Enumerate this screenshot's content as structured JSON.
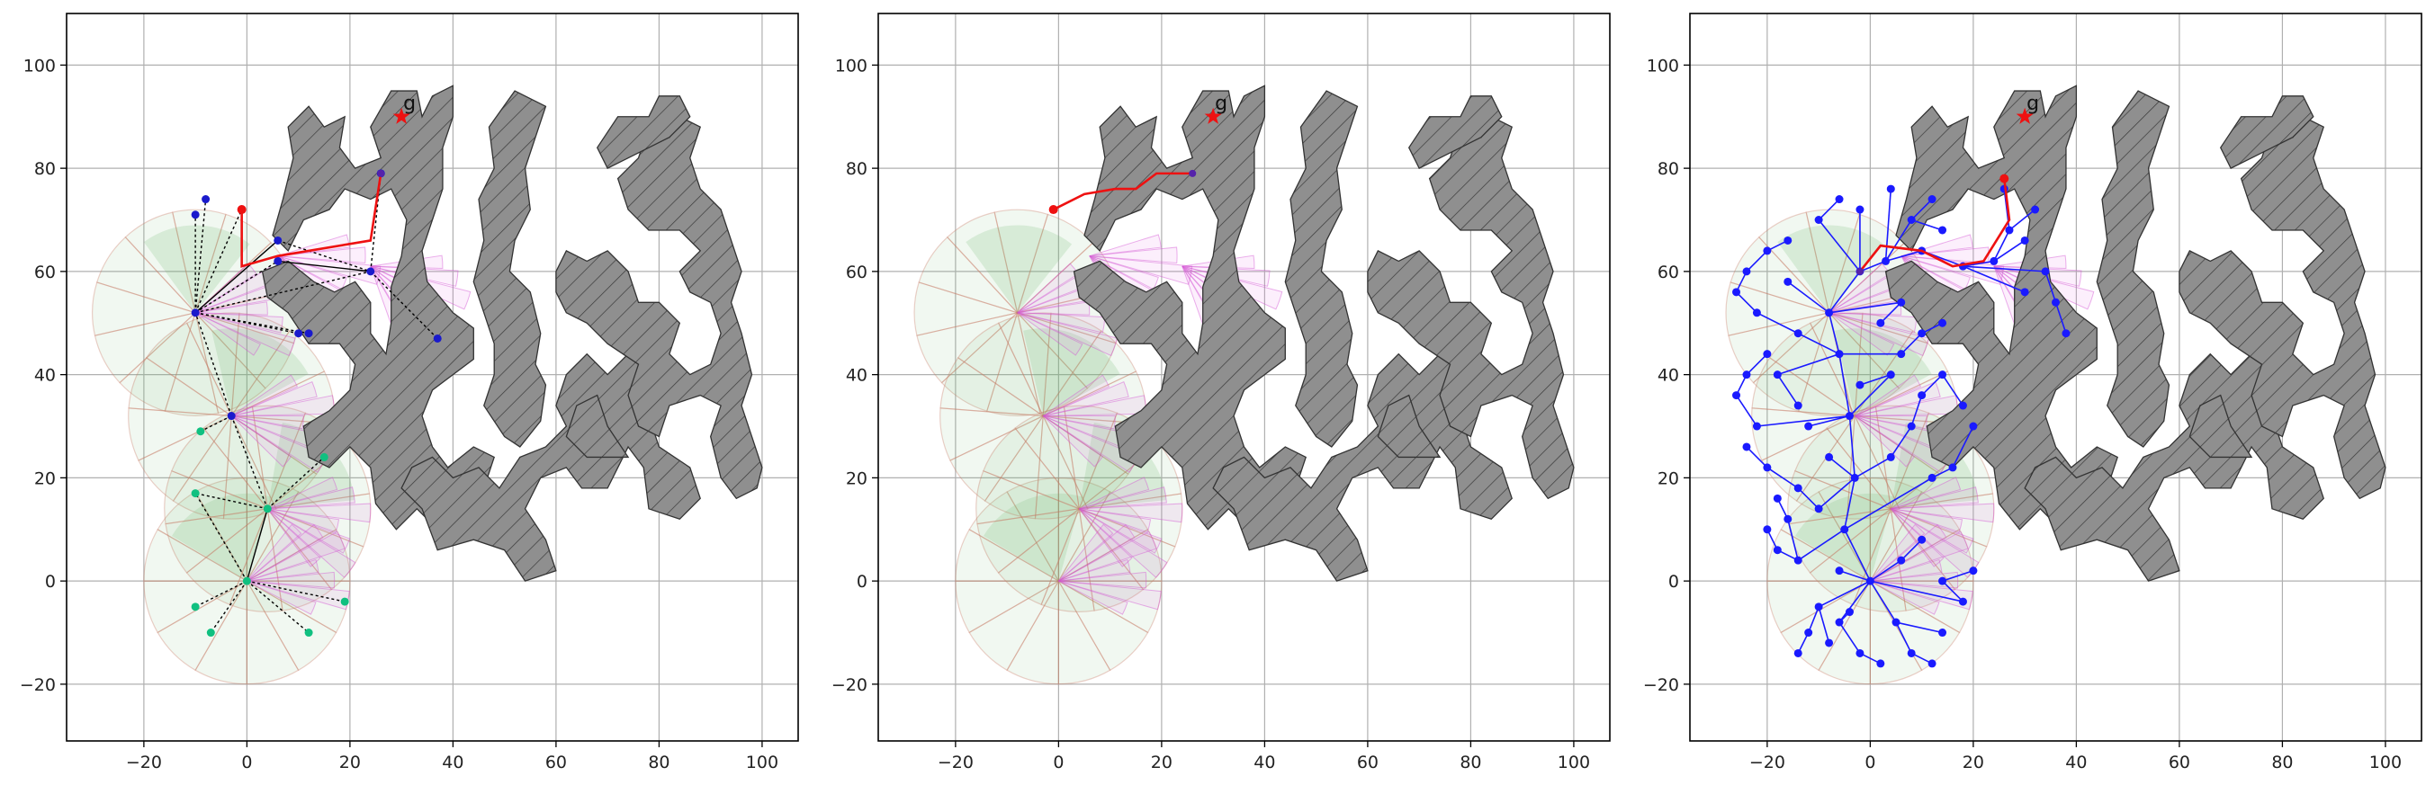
{
  "chart_data": [
    {
      "type": "scatter",
      "panel": "left",
      "title": "",
      "xlabel": "",
      "ylabel": "",
      "xlim": [
        -35,
        107
      ],
      "ylim": [
        -31,
        110
      ],
      "xticks": [
        -20,
        0,
        20,
        40,
        60,
        80,
        100
      ],
      "yticks": [
        -20,
        0,
        20,
        40,
        60,
        80,
        100
      ],
      "grid": true,
      "goal": {
        "label": "g",
        "x": 30,
        "y": 90
      },
      "sensor_origins": [
        [
          0,
          0
        ],
        [
          -10,
          52
        ],
        [
          -3,
          32
        ],
        [
          4,
          14
        ]
      ],
      "tree_nodes": [
        [
          0,
          0
        ],
        [
          -10,
          52
        ],
        [
          -3,
          32
        ],
        [
          4,
          14
        ],
        [
          6,
          66
        ],
        [
          6,
          62
        ],
        [
          24,
          60
        ],
        [
          26,
          79
        ],
        [
          -8,
          74
        ],
        [
          -1,
          72
        ],
        [
          -10,
          71
        ],
        [
          10,
          48
        ],
        [
          12,
          48
        ],
        [
          37,
          47
        ],
        [
          -9,
          29
        ],
        [
          -10,
          17
        ],
        [
          15,
          24
        ],
        [
          -10,
          -5
        ],
        [
          -7,
          -10
        ],
        [
          12,
          -10
        ],
        [
          19,
          -4
        ]
      ],
      "tree_edges": [
        [
          0,
          3
        ],
        [
          3,
          2
        ],
        [
          2,
          1
        ],
        [
          1,
          4
        ],
        [
          1,
          5
        ],
        [
          4,
          6
        ],
        [
          5,
          6
        ],
        [
          6,
          7
        ],
        [
          1,
          8
        ],
        [
          1,
          9
        ],
        [
          1,
          10
        ],
        [
          1,
          11
        ],
        [
          1,
          12
        ],
        [
          6,
          13
        ],
        [
          2,
          14
        ],
        [
          3,
          15
        ],
        [
          3,
          16
        ],
        [
          0,
          17
        ],
        [
          0,
          18
        ],
        [
          0,
          19
        ],
        [
          0,
          20
        ],
        [
          0,
          15
        ],
        [
          1,
          6
        ]
      ],
      "path": [
        [
          -1,
          72
        ],
        [
          -1,
          61
        ],
        [
          6,
          63
        ],
        [
          24,
          66
        ],
        [
          26,
          79
        ]
      ]
    },
    {
      "type": "scatter",
      "panel": "middle",
      "title": "",
      "xlabel": "",
      "ylabel": "",
      "xlim": [
        -35,
        107
      ],
      "ylim": [
        -31,
        110
      ],
      "xticks": [
        -20,
        0,
        20,
        40,
        60,
        80,
        100
      ],
      "yticks": [
        -20,
        0,
        20,
        40,
        60,
        80,
        100
      ],
      "grid": true,
      "goal": {
        "label": "g",
        "x": 30,
        "y": 90
      },
      "sensor_origins": [
        [
          0,
          0
        ],
        [
          -8,
          52
        ],
        [
          -3,
          32
        ],
        [
          4,
          14
        ]
      ],
      "tree_nodes": [],
      "tree_edges": [],
      "path": [
        [
          -1,
          72
        ],
        [
          5,
          75
        ],
        [
          11,
          76
        ],
        [
          15,
          76
        ],
        [
          19,
          79
        ],
        [
          26,
          79
        ]
      ]
    },
    {
      "type": "scatter",
      "panel": "right",
      "title": "",
      "xlabel": "",
      "ylabel": "",
      "xlim": [
        -35,
        107
      ],
      "ylim": [
        -31,
        110
      ],
      "xticks": [
        -20,
        0,
        20,
        40,
        60,
        80,
        100
      ],
      "yticks": [
        -20,
        0,
        20,
        40,
        60,
        80,
        100
      ],
      "grid": true,
      "goal": {
        "label": "g",
        "x": 30,
        "y": 90
      },
      "sensor_origins": [
        [
          0,
          0
        ],
        [
          -8,
          52
        ],
        [
          -3,
          32
        ],
        [
          4,
          14
        ]
      ],
      "tree_nodes": [
        [
          0,
          0
        ],
        [
          -5,
          10
        ],
        [
          -3,
          20
        ],
        [
          -4,
          32
        ],
        [
          -6,
          44
        ],
        [
          -8,
          52
        ],
        [
          -2,
          60
        ],
        [
          3,
          62
        ],
        [
          10,
          64
        ],
        [
          18,
          61
        ],
        [
          24,
          62
        ],
        [
          27,
          68
        ],
        [
          26,
          76
        ],
        [
          -10,
          -5
        ],
        [
          -12,
          -10
        ],
        [
          -14,
          -14
        ],
        [
          -8,
          -12
        ],
        [
          -6,
          -8
        ],
        [
          -4,
          -6
        ],
        [
          5,
          -8
        ],
        [
          8,
          -14
        ],
        [
          12,
          -16
        ],
        [
          14,
          -10
        ],
        [
          18,
          -4
        ],
        [
          14,
          0
        ],
        [
          20,
          2
        ],
        [
          -14,
          4
        ],
        [
          -18,
          6
        ],
        [
          -20,
          10
        ],
        [
          -10,
          14
        ],
        [
          -14,
          18
        ],
        [
          -20,
          22
        ],
        [
          -24,
          26
        ],
        [
          -22,
          30
        ],
        [
          -26,
          36
        ],
        [
          -24,
          40
        ],
        [
          -20,
          44
        ],
        [
          -14,
          48
        ],
        [
          -22,
          52
        ],
        [
          -26,
          56
        ],
        [
          -24,
          60
        ],
        [
          -20,
          64
        ],
        [
          -16,
          66
        ],
        [
          -10,
          70
        ],
        [
          -6,
          74
        ],
        [
          -2,
          72
        ],
        [
          4,
          76
        ],
        [
          8,
          70
        ],
        [
          12,
          74
        ],
        [
          14,
          68
        ],
        [
          -12,
          30
        ],
        [
          -8,
          24
        ],
        [
          4,
          24
        ],
        [
          8,
          30
        ],
        [
          10,
          36
        ],
        [
          14,
          40
        ],
        [
          18,
          34
        ],
        [
          12,
          20
        ],
        [
          16,
          22
        ],
        [
          20,
          30
        ],
        [
          6,
          44
        ],
        [
          10,
          48
        ],
        [
          14,
          50
        ],
        [
          30,
          66
        ],
        [
          34,
          60
        ],
        [
          36,
          54
        ],
        [
          38,
          48
        ],
        [
          30,
          56
        ],
        [
          32,
          72
        ],
        [
          -16,
          58
        ],
        [
          -18,
          40
        ],
        [
          -14,
          34
        ],
        [
          -6,
          2
        ],
        [
          6,
          4
        ],
        [
          10,
          8
        ],
        [
          -2,
          -14
        ],
        [
          2,
          -16
        ],
        [
          -16,
          12
        ],
        [
          -18,
          16
        ],
        [
          6,
          54
        ],
        [
          2,
          50
        ],
        [
          4,
          40
        ],
        [
          -2,
          38
        ]
      ],
      "tree_edges": [
        [
          0,
          1
        ],
        [
          1,
          2
        ],
        [
          2,
          3
        ],
        [
          3,
          4
        ],
        [
          4,
          5
        ],
        [
          5,
          6
        ],
        [
          6,
          7
        ],
        [
          7,
          8
        ],
        [
          8,
          9
        ],
        [
          9,
          10
        ],
        [
          10,
          11
        ],
        [
          11,
          12
        ],
        [
          0,
          13
        ],
        [
          13,
          14
        ],
        [
          14,
          15
        ],
        [
          13,
          16
        ],
        [
          0,
          17
        ],
        [
          17,
          18
        ],
        [
          0,
          19
        ],
        [
          19,
          20
        ],
        [
          20,
          21
        ],
        [
          19,
          22
        ],
        [
          0,
          23
        ],
        [
          23,
          24
        ],
        [
          24,
          25
        ],
        [
          1,
          26
        ],
        [
          26,
          27
        ],
        [
          27,
          28
        ],
        [
          2,
          29
        ],
        [
          29,
          30
        ],
        [
          30,
          31
        ],
        [
          31,
          32
        ],
        [
          3,
          33
        ],
        [
          33,
          34
        ],
        [
          34,
          35
        ],
        [
          35,
          36
        ],
        [
          4,
          37
        ],
        [
          37,
          38
        ],
        [
          38,
          39
        ],
        [
          39,
          40
        ],
        [
          40,
          41
        ],
        [
          41,
          42
        ],
        [
          6,
          43
        ],
        [
          43,
          44
        ],
        [
          6,
          45
        ],
        [
          7,
          46
        ],
        [
          7,
          47
        ],
        [
          47,
          48
        ],
        [
          47,
          49
        ],
        [
          3,
          50
        ],
        [
          2,
          51
        ],
        [
          2,
          52
        ],
        [
          52,
          53
        ],
        [
          53,
          54
        ],
        [
          54,
          55
        ],
        [
          55,
          56
        ],
        [
          1,
          57
        ],
        [
          57,
          58
        ],
        [
          58,
          59
        ],
        [
          4,
          60
        ],
        [
          60,
          61
        ],
        [
          61,
          62
        ],
        [
          10,
          63
        ],
        [
          9,
          64
        ],
        [
          64,
          65
        ],
        [
          65,
          66
        ],
        [
          9,
          67
        ],
        [
          11,
          68
        ],
        [
          5,
          69
        ],
        [
          4,
          70
        ],
        [
          70,
          71
        ],
        [
          0,
          72
        ],
        [
          0,
          73
        ],
        [
          73,
          74
        ],
        [
          17,
          75
        ],
        [
          75,
          76
        ],
        [
          26,
          77
        ],
        [
          77,
          78
        ],
        [
          5,
          79
        ],
        [
          79,
          80
        ],
        [
          3,
          81
        ],
        [
          81,
          82
        ]
      ],
      "path": [
        [
          26,
          78
        ],
        [
          27,
          70
        ],
        [
          22,
          62
        ],
        [
          16,
          61
        ],
        [
          10,
          64
        ],
        [
          2,
          65
        ],
        [
          -2,
          60
        ]
      ]
    }
  ]
}
